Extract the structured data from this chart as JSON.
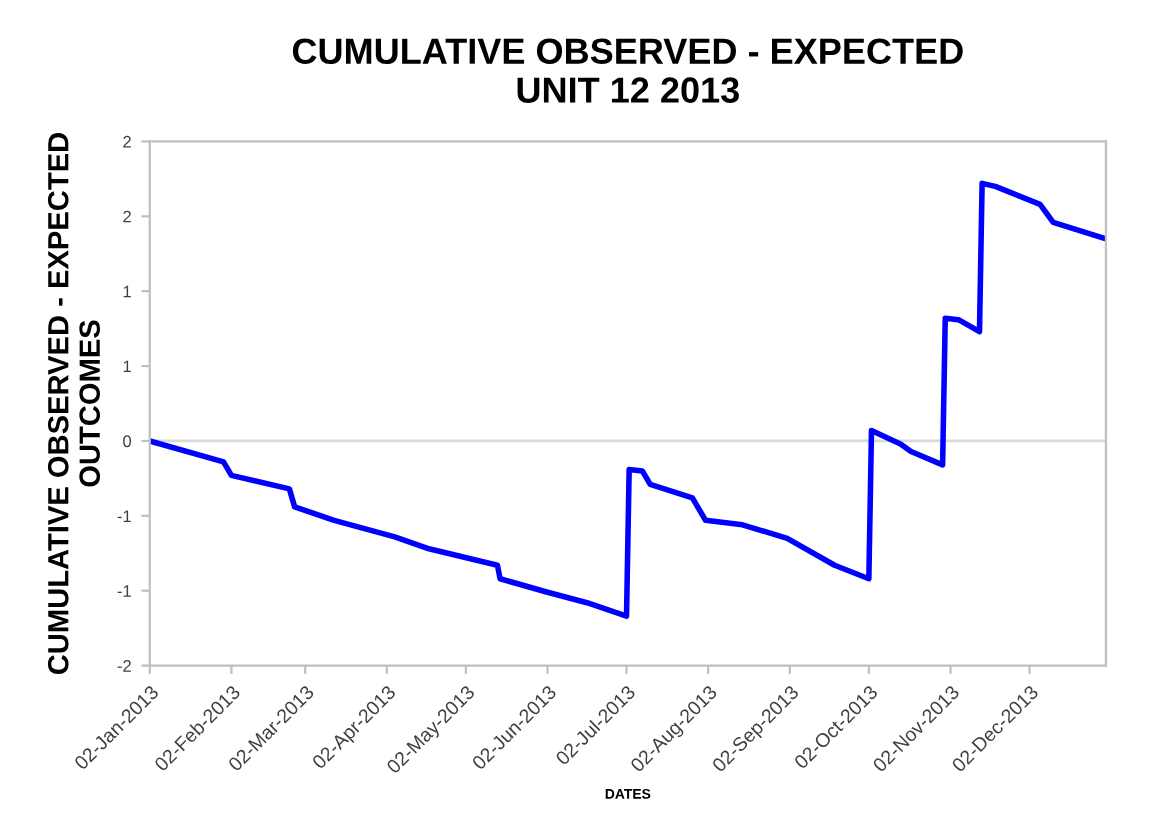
{
  "chart_data": {
    "type": "line",
    "title": "CUMULATIVE OBSERVED - EXPECTED\nUNIT 12 2013",
    "xlabel": "DATES",
    "ylabel": "CUMULATIVE OBSERVED - EXPECTED\nOUTCOMES",
    "x": [
      "2013-01-02",
      "2013-01-30",
      "2013-02-02",
      "2013-02-24",
      "2013-02-26",
      "2013-03-13",
      "2013-04-05",
      "2013-04-18",
      "2013-05-14",
      "2013-05-15",
      "2013-06-02",
      "2013-06-17",
      "2013-07-02",
      "2013-07-03",
      "2013-07-08",
      "2013-07-11",
      "2013-07-27",
      "2013-08-01",
      "2013-08-15",
      "2013-09-01",
      "2013-09-19",
      "2013-10-02",
      "2013-10-03",
      "2013-10-14",
      "2013-10-18",
      "2013-10-30",
      "2013-10-31",
      "2013-11-05",
      "2013-11-13",
      "2013-11-14",
      "2013-11-19",
      "2013-12-06",
      "2013-12-11",
      "2013-12-31"
    ],
    "series": [
      {
        "color": "#0000ff",
        "values": [
          0,
          -0.14,
          -0.23,
          -0.32,
          -0.44,
          -0.53,
          -0.64,
          -0.72,
          -0.83,
          -0.92,
          -1.01,
          -1.08,
          -1.17,
          -0.19,
          -0.2,
          -0.29,
          -0.38,
          -0.53,
          -0.56,
          -0.65,
          -0.83,
          -0.92,
          0.07,
          -0.02,
          -0.07,
          -0.16,
          0.82,
          0.81,
          0.73,
          1.72,
          1.7,
          1.58,
          1.46,
          1.35
        ]
      }
    ],
    "xlim": [
      "2013-01-02",
      "2013-12-31"
    ],
    "xticks": [
      {
        "value": "2013-01-02",
        "label": "02-Jan-2013"
      },
      {
        "value": "2013-02-02",
        "label": "02-Feb-2013"
      },
      {
        "value": "2013-03-02",
        "label": "02-Mar-2013"
      },
      {
        "value": "2013-04-02",
        "label": "02-Apr-2013"
      },
      {
        "value": "2013-05-02",
        "label": "02-May-2013"
      },
      {
        "value": "2013-06-02",
        "label": "02-Jun-2013"
      },
      {
        "value": "2013-07-02",
        "label": "02-Jul-2013"
      },
      {
        "value": "2013-08-02",
        "label": "02-Aug-2013"
      },
      {
        "value": "2013-09-02",
        "label": "02-Sep-2013"
      },
      {
        "value": "2013-10-02",
        "label": "02-Oct-2013"
      },
      {
        "value": "2013-11-02",
        "label": "02-Nov-2013"
      },
      {
        "value": "2013-12-02",
        "label": "02-Dec-2013"
      }
    ],
    "ylim": [
      -1.5,
      2
    ],
    "yticks": [
      {
        "value": -1.5,
        "label": "-2"
      },
      {
        "value": -1,
        "label": "-1"
      },
      {
        "value": -0.5,
        "label": "-1"
      },
      0,
      {
        "value": 0.5,
        "label": "1"
      },
      1,
      {
        "value": 1.5,
        "label": "2"
      },
      2
    ],
    "ref_lines": [
      {
        "axis": "y",
        "value": 0,
        "color": "#d9d9d9"
      }
    ],
    "grid": false,
    "legend": false,
    "marker": "none",
    "line_style": "solid"
  }
}
